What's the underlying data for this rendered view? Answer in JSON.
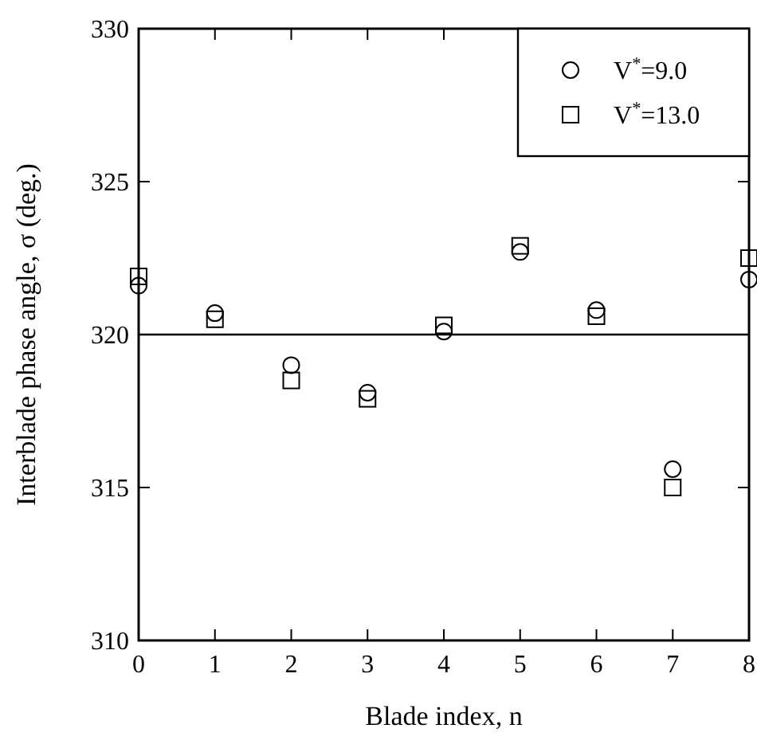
{
  "chart_data": {
    "type": "scatter",
    "xlabel": "Blade index, n",
    "ylabel": "Interblade phase angle, σ (deg.)",
    "x": [
      0,
      1,
      2,
      3,
      4,
      5,
      6,
      7,
      8
    ],
    "xlim": [
      0,
      8
    ],
    "xticks": [
      0,
      1,
      2,
      3,
      4,
      5,
      6,
      7,
      8
    ],
    "ylim": [
      310,
      330
    ],
    "yticks": [
      310,
      315,
      320,
      325,
      330
    ],
    "legend": "top right",
    "grid": false,
    "ref_lines": [
      {
        "axis": "y",
        "value": 320
      }
    ],
    "series": [
      {
        "name": "V$^{*}$=9.0",
        "color": "#000000",
        "marker": "circle",
        "values": [
          321.6,
          320.7,
          319.0,
          318.1,
          320.1,
          322.7,
          320.8,
          315.6,
          321.8
        ]
      },
      {
        "name": "V$^{*}$=13.0",
        "color": "#000000",
        "marker": "square",
        "values": [
          321.9,
          320.5,
          318.5,
          317.9,
          320.3,
          322.9,
          320.6,
          315.0,
          322.5
        ]
      }
    ]
  }
}
